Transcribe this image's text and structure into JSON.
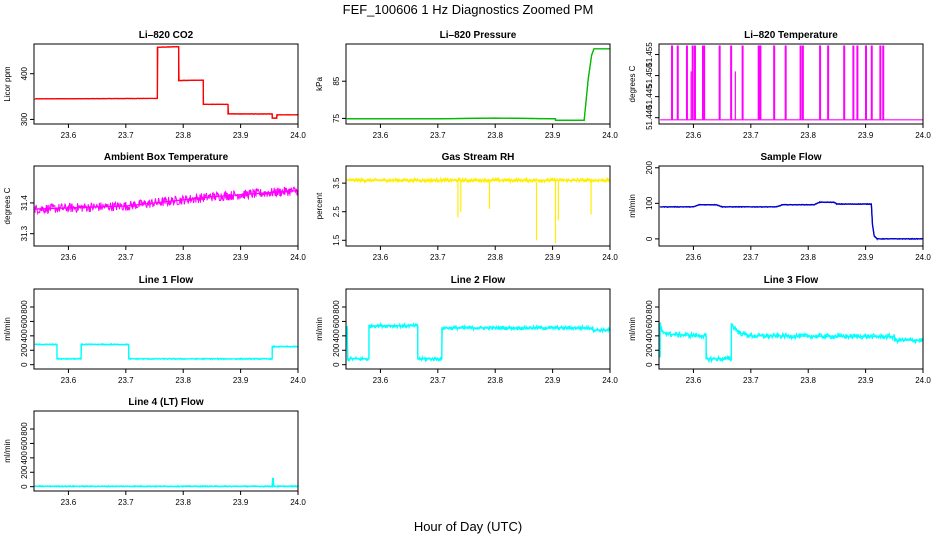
{
  "title": "FEF_100606  1 Hz Diagnostics Zoomed PM",
  "xlabel": "Hour of Day (UTC)",
  "chart_data": [
    {
      "type": "line",
      "title": "Li–820 CO2",
      "ylabel": "Licor ppm",
      "color": "#ff0000",
      "xlim": [
        23.54,
        24.0
      ],
      "ylim": [
        290,
        465
      ],
      "xticks": [
        23.6,
        23.7,
        23.8,
        23.9,
        24.0
      ],
      "xtick_labels": [
        "23.6",
        "23.7",
        "23.8",
        "23.9",
        "24.0"
      ],
      "yticks": [
        300,
        400
      ],
      "ytick_labels": [
        "300",
        "400"
      ],
      "noise": 0.7,
      "x": [
        23.542,
        23.755,
        23.755,
        23.792,
        23.792,
        23.835,
        23.835,
        23.878,
        23.878,
        23.955,
        23.955,
        23.963,
        23.963,
        24.0
      ],
      "y": [
        345,
        346,
        458,
        459,
        385,
        386,
        333,
        333,
        312,
        312,
        303,
        303,
        310,
        310
      ]
    },
    {
      "type": "line",
      "title": "Li–820 Pressure",
      "ylabel": "kPa",
      "color": "#00bb00",
      "xlim": [
        23.54,
        24.0
      ],
      "ylim": [
        73.5,
        95.0
      ],
      "xticks": [
        23.6,
        23.7,
        23.8,
        23.9,
        24.0
      ],
      "xtick_labels": [
        "23.6",
        "23.7",
        "23.8",
        "23.9",
        "24.0"
      ],
      "yticks": [
        75,
        85
      ],
      "ytick_labels": [
        "75",
        "85"
      ],
      "noise": 0.1,
      "x": [
        23.542,
        23.7,
        23.8,
        23.905,
        23.905,
        23.955,
        23.962,
        23.968,
        23.972,
        24.0
      ],
      "y": [
        74.9,
        74.9,
        75.1,
        74.9,
        74.5,
        74.5,
        85.5,
        92.0,
        93.7,
        93.7
      ]
    },
    {
      "type": "line",
      "title": "Li–820 Temperature",
      "ylabel": "degrees C",
      "color": "#ff00ff",
      "xlim": [
        23.54,
        24.0
      ],
      "ylim": [
        51.4385,
        51.4575
      ],
      "xticks": [
        23.6,
        23.7,
        23.8,
        23.9,
        24.0
      ],
      "xtick_labels": [
        "23.6",
        "23.7",
        "23.8",
        "23.9",
        "24.0"
      ],
      "yticks": [
        51.44,
        51.445,
        51.45,
        51.455
      ],
      "ytick_labels": [
        "51.440",
        "51.445",
        "51.450",
        "51.455"
      ],
      "style": "spikes",
      "baseline": 51.4395,
      "spike_top": 51.457,
      "spikes": [
        23.562,
        23.572,
        23.588,
        23.598,
        23.602,
        23.616,
        23.618,
        23.645,
        23.665,
        23.685,
        23.713,
        23.716,
        23.74,
        23.76,
        23.786,
        23.79,
        23.82,
        23.834,
        23.862,
        23.878,
        23.885,
        23.9,
        23.91,
        23.925,
        23.93
      ],
      "short_spikes": [
        {
          "x": 23.596,
          "y": 51.451
        },
        {
          "x": 23.673,
          "y": 51.451
        },
        {
          "x": 23.9,
          "y": 51.45
        }
      ]
    },
    {
      "type": "line",
      "title": "Ambient Box Temperature",
      "ylabel": "degrees C",
      "color": "#ff00ff",
      "xlim": [
        23.54,
        24.0
      ],
      "ylim": [
        31.26,
        31.52
      ],
      "xticks": [
        23.6,
        23.7,
        23.8,
        23.9,
        24.0
      ],
      "xtick_labels": [
        "23.6",
        "23.7",
        "23.8",
        "23.9",
        "24.0"
      ],
      "yticks": [
        31.3,
        31.4
      ],
      "ytick_labels": [
        "31.3",
        "31.4"
      ],
      "noise": 9,
      "style": "noisy",
      "x": [
        23.542,
        23.7,
        23.85,
        24.0
      ],
      "y": [
        31.38,
        31.39,
        31.42,
        31.44
      ]
    },
    {
      "type": "line",
      "title": "Gas Stream RH",
      "ylabel": "percent",
      "color": "#ffee00",
      "xlim": [
        23.54,
        24.0
      ],
      "ylim": [
        1.3,
        4.1
      ],
      "xticks": [
        23.6,
        23.7,
        23.8,
        23.9,
        24.0
      ],
      "xtick_labels": [
        "23.6",
        "23.7",
        "23.8",
        "23.9",
        "24.0"
      ],
      "yticks": [
        1.5,
        2.5,
        3.5
      ],
      "ytick_labels": [
        "1.5",
        "2.5",
        "3.5"
      ],
      "noise": 4,
      "style": "noisy",
      "x": [
        23.542,
        24.0
      ],
      "y": [
        3.6,
        3.6
      ],
      "dips": [
        {
          "x": 23.735,
          "y": 2.3
        },
        {
          "x": 23.74,
          "y": 2.5
        },
        {
          "x": 23.79,
          "y": 2.6
        },
        {
          "x": 23.872,
          "y": 1.5
        },
        {
          "x": 23.905,
          "y": 1.4
        },
        {
          "x": 23.91,
          "y": 2.2
        },
        {
          "x": 23.967,
          "y": 2.4
        }
      ]
    },
    {
      "type": "line",
      "title": "Sample Flow",
      "ylabel": "ml/min",
      "color": "#0000cc",
      "xlim": [
        23.54,
        24.0
      ],
      "ylim": [
        -20,
        205
      ],
      "xticks": [
        23.6,
        23.7,
        23.8,
        23.9,
        24.0
      ],
      "xtick_labels": [
        "23.6",
        "23.7",
        "23.8",
        "23.9",
        "24.0"
      ],
      "yticks": [
        0,
        100,
        200
      ],
      "ytick_labels": [
        "0",
        "100",
        "200"
      ],
      "noise": 1.2,
      "x": [
        23.542,
        23.6,
        23.61,
        23.64,
        23.65,
        23.745,
        23.755,
        23.81,
        23.82,
        23.845,
        23.85,
        23.91,
        23.912,
        23.915,
        23.92,
        24.0
      ],
      "y": [
        90,
        90,
        96,
        96,
        90,
        90,
        96,
        96,
        103,
        103,
        98,
        98,
        40,
        8,
        0,
        0
      ]
    },
    {
      "type": "line",
      "title": "Line 1 Flow",
      "ylabel": "ml/min",
      "color": "#00ffff",
      "xlim": [
        23.54,
        24.0
      ],
      "ylim": [
        -60,
        1050
      ],
      "xticks": [
        23.6,
        23.7,
        23.8,
        23.9,
        24.0
      ],
      "xtick_labels": [
        "23.6",
        "23.7",
        "23.8",
        "23.9",
        "24.0"
      ],
      "yticks": [
        0,
        200,
        400,
        600,
        800
      ],
      "ytick_labels": [
        "0",
        "200",
        "400",
        "600",
        "800"
      ],
      "noise": 2,
      "x": [
        23.542,
        23.58,
        23.58,
        23.622,
        23.622,
        23.705,
        23.705,
        23.955,
        23.955,
        24.0
      ],
      "y": [
        280,
        280,
        80,
        80,
        280,
        280,
        80,
        80,
        250,
        250
      ]
    },
    {
      "type": "line",
      "title": "Line 2 Flow",
      "ylabel": "ml/min",
      "color": "#00ffff",
      "xlim": [
        23.54,
        24.0
      ],
      "ylim": [
        -60,
        1050
      ],
      "xticks": [
        23.6,
        23.7,
        23.8,
        23.9,
        24.0
      ],
      "xtick_labels": [
        "23.6",
        "23.7",
        "23.8",
        "23.9",
        "24.0"
      ],
      "yticks": [
        0,
        200,
        400,
        600,
        800
      ],
      "ytick_labels": [
        "0",
        "200",
        "400",
        "600",
        "800"
      ],
      "noise": 6,
      "x": [
        23.542,
        23.542,
        23.543,
        23.58,
        23.58,
        23.665,
        23.665,
        23.707,
        23.707,
        23.97,
        23.97,
        24.0
      ],
      "y": [
        520,
        520,
        80,
        80,
        540,
        540,
        80,
        80,
        510,
        510,
        480,
        480
      ]
    },
    {
      "type": "line",
      "title": "Line 3 Flow",
      "ylabel": "ml/min",
      "color": "#00ffff",
      "xlim": [
        23.54,
        24.0
      ],
      "ylim": [
        -60,
        1050
      ],
      "xticks": [
        23.6,
        23.7,
        23.8,
        23.9,
        24.0
      ],
      "xtick_labels": [
        "23.6",
        "23.7",
        "23.8",
        "23.9",
        "24.0"
      ],
      "yticks": [
        0,
        200,
        400,
        600,
        800
      ],
      "ytick_labels": [
        "0",
        "200",
        "400",
        "600",
        "800"
      ],
      "noise": 8,
      "x": [
        23.542,
        23.542,
        23.545,
        23.56,
        23.62,
        23.622,
        23.622,
        23.666,
        23.666,
        23.68,
        23.7,
        23.95,
        23.95,
        24.0
      ],
      "y": [
        100,
        560,
        460,
        420,
        400,
        400,
        80,
        80,
        560,
        440,
        400,
        390,
        340,
        340
      ]
    },
    {
      "type": "line",
      "title": "Line 4 (LT) Flow",
      "ylabel": "ml/min",
      "color": "#00ffff",
      "xlim": [
        23.54,
        24.0
      ],
      "ylim": [
        -60,
        1050
      ],
      "xticks": [
        23.6,
        23.7,
        23.8,
        23.9,
        24.0
      ],
      "xtick_labels": [
        "23.6",
        "23.7",
        "23.8",
        "23.9",
        "24.0"
      ],
      "yticks": [
        0,
        200,
        400,
        600,
        800
      ],
      "ytick_labels": [
        "0",
        "200",
        "400",
        "600",
        "800"
      ],
      "noise": 2,
      "x": [
        23.542,
        23.955,
        23.956,
        23.958,
        23.96,
        24.0
      ],
      "y": [
        5,
        5,
        120,
        5,
        5,
        5
      ],
      "spike": {
        "x": 23.957,
        "y": 120
      }
    }
  ]
}
